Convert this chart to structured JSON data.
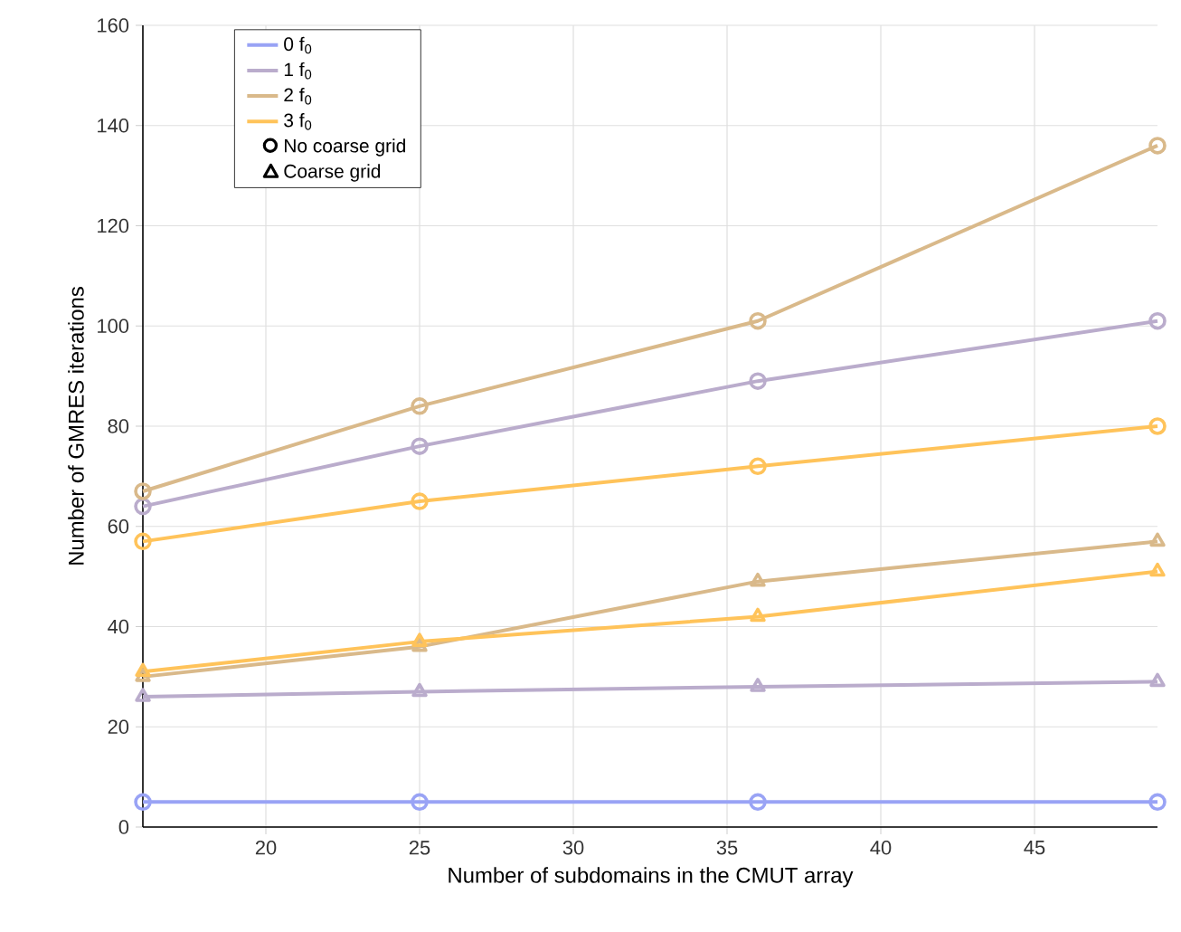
{
  "chart_data": {
    "type": "line",
    "xlabel": "Number of subdomains in the CMUT array",
    "ylabel": "Number of GMRES iterations",
    "x": [
      16,
      25,
      36,
      49
    ],
    "xlim": [
      16,
      49
    ],
    "xticks": [
      20,
      25,
      30,
      35,
      40,
      45
    ],
    "ylim": [
      0,
      160
    ],
    "yticks": [
      0,
      20,
      40,
      60,
      80,
      100,
      120,
      140,
      160
    ],
    "grid": true,
    "legend": "top left",
    "line_style": "solid",
    "annotations": [
      "No coarse grid",
      "Coarse grid"
    ],
    "series": [
      {
        "name": "0 f$_{0}$",
        "color": "#99a3f5",
        "marker": "circle",
        "values": [
          5,
          5,
          5,
          5
        ]
      },
      {
        "name": "1 f$_{0}$",
        "color": "#baaccc",
        "marker": "circle",
        "values": [
          64,
          76,
          89,
          101
        ]
      },
      {
        "name": "2 f$_{0}$",
        "color": "#d9b98a",
        "marker": "circle",
        "values": [
          67,
          84,
          101,
          136
        ]
      },
      {
        "name": "3 f$_{0}$",
        "color": "#ffc35a",
        "marker": "circle",
        "values": [
          57,
          65,
          72,
          80
        ]
      },
      {
        "color": "#baaccc",
        "marker": "triangle",
        "values": [
          26,
          27,
          28,
          29
        ]
      },
      {
        "color": "#d9b98a",
        "marker": "triangle",
        "values": [
          30,
          36,
          49,
          57
        ]
      },
      {
        "color": "#ffc35a",
        "marker": "triangle",
        "values": [
          31,
          37,
          42,
          51
        ]
      }
    ]
  }
}
